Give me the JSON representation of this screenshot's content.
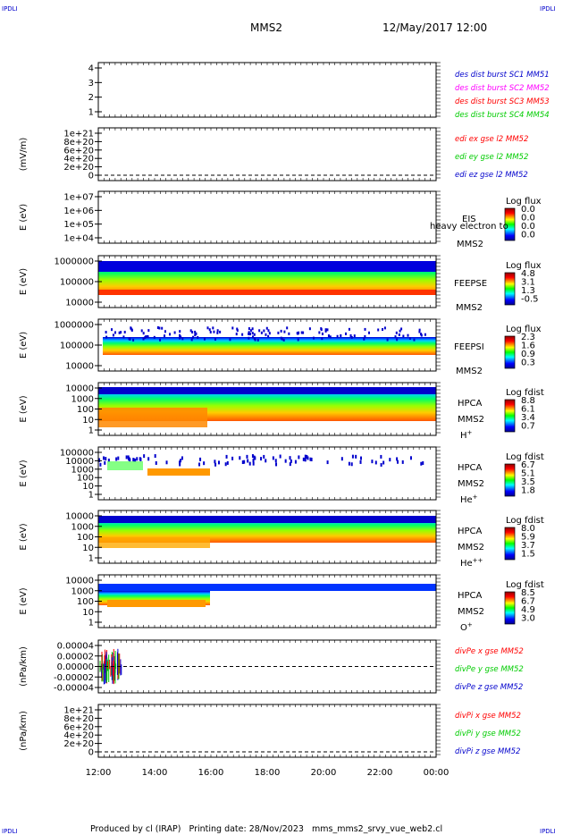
{
  "corner_marks": {
    "tl": "IPDLI",
    "tr": "IPDLI",
    "bl": "IPDLI",
    "br": "IPDLI"
  },
  "header": {
    "title": "MMS2",
    "datetime": "12/May/2017 12:00"
  },
  "footer": {
    "text": "Produced by cl (IRAP)   Printing date: 28/Nov/2023   mms_mms2_srvy_vue_web2.cl"
  },
  "colors": {
    "red": "#ff0000",
    "green": "#00cc00",
    "blue": "#0000cc",
    "magenta": "#ff00ff",
    "dashed": "#000000",
    "frame": "#000000"
  },
  "chart_data": [
    {
      "id": "p1",
      "type": "line",
      "ylabel": "",
      "yticks": [
        "4",
        "3",
        "2",
        "1"
      ],
      "legend": [
        {
          "label": "des dist burst SC1 MM51",
          "color": "#0000cc"
        },
        {
          "label": "des dist burst SC2 MM52",
          "color": "#ff00ff"
        },
        {
          "label": "des dist burst SC3 MM53",
          "color": "#ff0000"
        },
        {
          "label": "des dist burst SC4 MM54",
          "color": "#00cc00"
        }
      ]
    },
    {
      "id": "p2",
      "type": "line",
      "ylabel": "(mV/m)",
      "yticks": [
        "1e+21",
        "8e+20",
        "6e+20",
        "4e+20",
        "2e+20",
        "0"
      ],
      "legend": [
        {
          "label": "edi ex gse l2 MM52",
          "color": "#ff0000"
        },
        {
          "label": "edi ey gse l2 MM52",
          "color": "#00cc00"
        },
        {
          "label": "edi ez gse l2 MM52",
          "color": "#0000cc"
        }
      ]
    },
    {
      "id": "p3",
      "type": "heatmap",
      "ylabel": "E (eV)",
      "yticks": [
        "1e+07",
        "1e+06",
        "1e+05",
        "1e+04"
      ],
      "instrument": "EIS",
      "spacecraft": "MMS2",
      "note": "heavy electron to",
      "colorbar": {
        "title": "Log flux",
        "ticks": [
          "0.0",
          "0.0",
          "0.0",
          "0.0"
        ]
      }
    },
    {
      "id": "p4",
      "type": "heatmap",
      "ylabel": "E (eV)",
      "yticks": [
        "1000000",
        "100000",
        "10000"
      ],
      "instrument": "FEEPSE",
      "spacecraft": "MMS2",
      "colorbar": {
        "title": "Log flux",
        "ticks": [
          "4.8",
          "3.1",
          "1.3",
          "-0.5"
        ]
      }
    },
    {
      "id": "p5",
      "type": "heatmap",
      "ylabel": "E (eV)",
      "yticks": [
        "1000000",
        "100000",
        "10000"
      ],
      "instrument": "FEEPSI",
      "spacecraft": "MMS2",
      "colorbar": {
        "title": "Log flux",
        "ticks": [
          "2.3",
          "1.6",
          "0.9",
          "0.3"
        ]
      }
    },
    {
      "id": "p6",
      "type": "heatmap",
      "ylabel": "E (eV)",
      "yticks": [
        "10000",
        "1000",
        "100",
        "10",
        "1"
      ],
      "instrument": "HPCA",
      "spacecraft": "MMS2",
      "species": "H",
      "charge": "+",
      "colorbar": {
        "title": "Log fdist",
        "ticks": [
          "8.8",
          "6.1",
          "3.4",
          "0.7"
        ]
      }
    },
    {
      "id": "p7",
      "type": "heatmap",
      "ylabel": "E (eV)",
      "yticks": [
        "100000",
        "10000",
        "1000",
        "100",
        "10",
        "1"
      ],
      "instrument": "HPCA",
      "spacecraft": "MMS2",
      "species": "He",
      "charge": "+",
      "colorbar": {
        "title": "Log fdist",
        "ticks": [
          "6.7",
          "5.1",
          "3.5",
          "1.8"
        ]
      }
    },
    {
      "id": "p8",
      "type": "heatmap",
      "ylabel": "E (eV)",
      "yticks": [
        "10000",
        "1000",
        "100",
        "10",
        "1"
      ],
      "instrument": "HPCA",
      "spacecraft": "MMS2",
      "species": "He",
      "charge": "++",
      "colorbar": {
        "title": "Log fdist",
        "ticks": [
          "8.0",
          "5.9",
          "3.7",
          "1.5"
        ]
      }
    },
    {
      "id": "p9",
      "type": "heatmap",
      "ylabel": "E (eV)",
      "yticks": [
        "10000",
        "1000",
        "100",
        "10",
        "1"
      ],
      "instrument": "HPCA",
      "spacecraft": "MMS2",
      "species": "O",
      "charge": "+",
      "colorbar": {
        "title": "Log fdist",
        "ticks": [
          "8.5",
          "6.7",
          "4.9",
          "3.0"
        ]
      }
    },
    {
      "id": "p10",
      "type": "line",
      "ylabel": "(nPa/km)",
      "yticks": [
        "0.00004",
        "0.00002",
        "0.00000",
        "-0.00002",
        "-0.00004"
      ],
      "legend": [
        {
          "label": "divPe x gse MM52",
          "color": "#ff0000"
        },
        {
          "label": "divPe y gse MM52",
          "color": "#00cc00"
        },
        {
          "label": "divPe z gse MM52",
          "color": "#0000cc"
        }
      ]
    },
    {
      "id": "p11",
      "type": "line",
      "ylabel": "(nPa/km)",
      "yticks": [
        "1e+21",
        "8e+20",
        "6e+20",
        "4e+20",
        "2e+20",
        "0"
      ],
      "legend": [
        {
          "label": "divPi x gse MM52",
          "color": "#ff0000"
        },
        {
          "label": "divPi y gse MM52",
          "color": "#00cc00"
        },
        {
          "label": "divPi z gse MM52",
          "color": "#0000cc"
        }
      ]
    }
  ],
  "x_axis": {
    "ticks": [
      "12:00",
      "14:00",
      "16:00",
      "18:00",
      "20:00",
      "22:00",
      "00:00"
    ]
  }
}
